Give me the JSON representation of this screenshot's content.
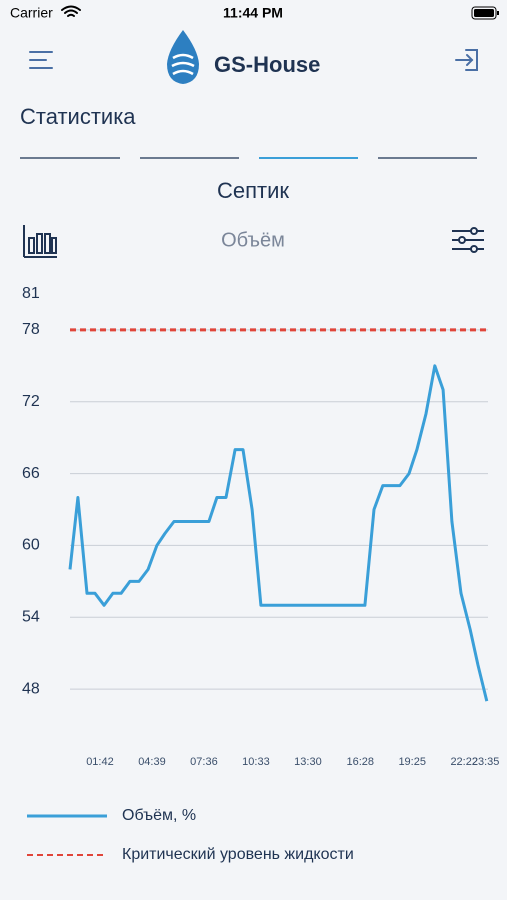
{
  "status_bar": {
    "carrier": "Carrier",
    "time": "11:44 PM"
  },
  "header": {
    "title": "GS-House"
  },
  "section_title": "Статистика",
  "device_title": "Септик",
  "chart_data": {
    "type": "line",
    "title": "Объём",
    "x": [
      0,
      27,
      58,
      85,
      116,
      146,
      174,
      204,
      235,
      266,
      296,
      323,
      354,
      385,
      412,
      443,
      473,
      500,
      531,
      562,
      589,
      620,
      650,
      1004,
      1035,
      1065,
      1093,
      1123,
      1154,
      1181,
      1212,
      1242,
      1270,
      1300,
      1331,
      1362,
      1389,
      1419
    ],
    "series": [
      {
        "name": "Объём, %",
        "color": "#3a9fd8",
        "values": [
          58,
          64,
          56,
          56,
          55,
          56,
          56,
          57,
          57,
          58,
          60,
          61,
          62,
          62,
          62,
          62,
          62,
          64,
          64,
          68,
          68,
          63,
          55,
          55,
          63,
          65,
          65,
          65,
          66,
          68,
          71,
          75,
          73,
          62,
          56,
          53,
          50,
          47
        ]
      }
    ],
    "reference_lines": [
      {
        "name": "Критический уровень жидкости",
        "value": 78,
        "color": "#e0453a"
      }
    ],
    "xlim": [
      0,
      1423
    ],
    "xticks": [
      {
        "value": 102,
        "label": "01:42"
      },
      {
        "value": 279,
        "label": "04:39"
      },
      {
        "value": 456,
        "label": "07:36"
      },
      {
        "value": 633,
        "label": "10:33"
      },
      {
        "value": 810,
        "label": "13:30"
      },
      {
        "value": 988,
        "label": "16:28"
      },
      {
        "value": 1165,
        "label": "19:25"
      },
      {
        "value": 1342,
        "label": "22:22"
      },
      {
        "value": 1415,
        "label": "23:35"
      }
    ],
    "ylim": [
      44,
      81
    ],
    "yticks": [
      48,
      54,
      60,
      66,
      72,
      78,
      81
    ],
    "grid": true
  }
}
